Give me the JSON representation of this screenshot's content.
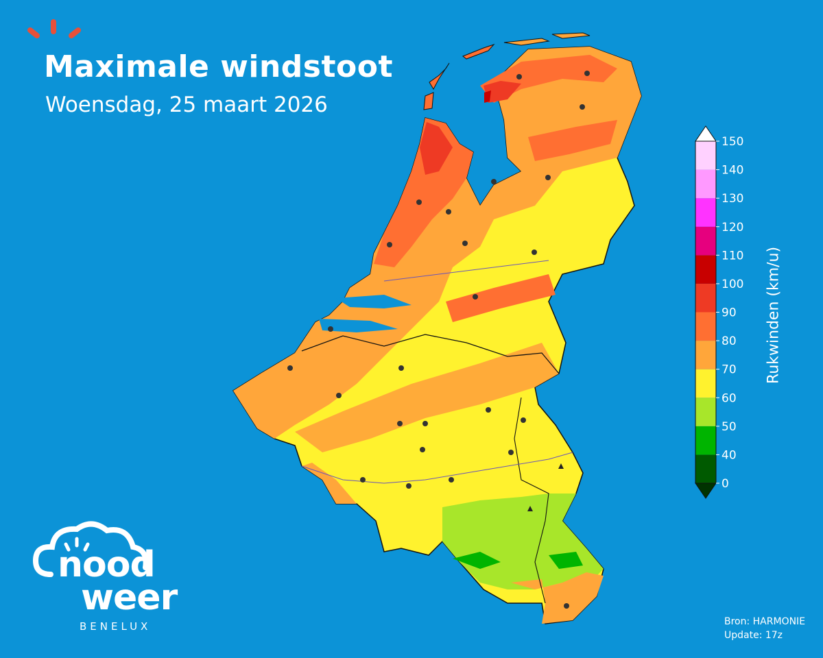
{
  "header": {
    "title": "Maximale windstoot",
    "subtitle": "Woensdag, 25 maart 2026"
  },
  "colors": {
    "background": "#0c93d7",
    "sun_rays": "#e8503a"
  },
  "legend": {
    "title": "Rukwinden (km/u)",
    "levels": [
      {
        "label": "0",
        "color": "#004d00"
      },
      {
        "label": "40",
        "color": "#00b400"
      },
      {
        "label": "50",
        "color": "#a8e62a"
      },
      {
        "label": "60",
        "color": "#fff22e"
      },
      {
        "label": "70",
        "color": "#ffa63a"
      },
      {
        "label": "80",
        "color": "#ff6f32"
      },
      {
        "label": "90",
        "color": "#ee3a24"
      },
      {
        "label": "100",
        "color": "#c80000"
      },
      {
        "label": "110",
        "color": "#e6007e"
      },
      {
        "label": "120",
        "color": "#ff33ff"
      },
      {
        "label": "130",
        "color": "#ff99ff"
      },
      {
        "label": "140",
        "color": "#ffd1ff"
      },
      {
        "label": "150",
        "color": "#ffffff"
      }
    ],
    "underflow_color": "#003300",
    "overflow_color": "#ffffff"
  },
  "footer": {
    "source": "Bron: HARMONIE",
    "update": "Update: 17z"
  },
  "logo": {
    "word1": "nood",
    "word2": "weer",
    "region": "BENELUX"
  }
}
